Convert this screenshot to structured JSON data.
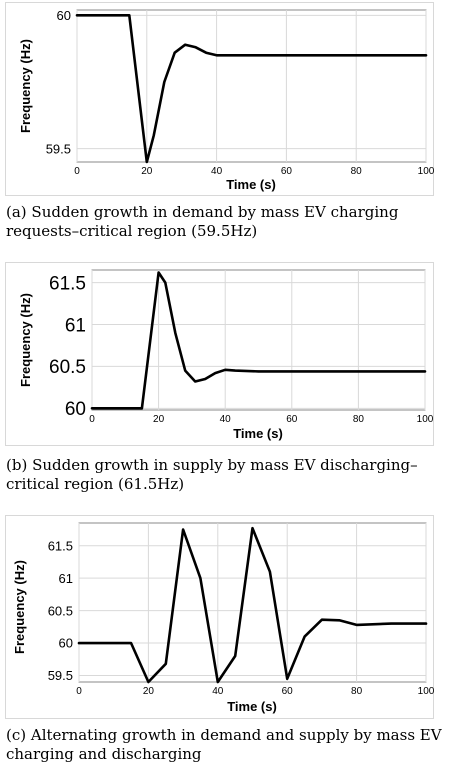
{
  "figures": [
    {
      "caption": "(a) Sudden growth in demand by mass EV charging requests–critical region (59.5Hz)",
      "chart_data": {
        "type": "line",
        "xlabel": "Time (s)",
        "ylabel": "Frequency (Hz)",
        "xlim": [
          0,
          100
        ],
        "ylim": [
          59.45,
          60.02
        ],
        "xticks": [
          0,
          20,
          40,
          60,
          80,
          100
        ],
        "yticks": [
          59.5,
          60
        ],
        "grid": true,
        "series": [
          {
            "x": [
              0,
              15,
              20,
              22,
              25,
              28,
              31,
              34,
              37,
              40,
              43,
              50,
              100
            ],
            "y": [
              60,
              60,
              59.45,
              59.55,
              59.75,
              59.86,
              59.89,
              59.88,
              59.86,
              59.85,
              59.85,
              59.85,
              59.85
            ]
          }
        ]
      }
    },
    {
      "caption": "(b) Sudden growth in supply by mass EV discharging–critical region (61.5Hz)",
      "chart_data": {
        "type": "line",
        "xlabel": "Time (s)",
        "ylabel": "Frequency (Hz)",
        "xlim": [
          0,
          100
        ],
        "ylim": [
          59.98,
          61.65
        ],
        "xticks": [
          0,
          20,
          40,
          60,
          80,
          100
        ],
        "yticks": [
          60,
          60.5,
          61,
          61.5
        ],
        "grid": true,
        "series": [
          {
            "x": [
              0,
              15,
              20,
              22,
              25,
              28,
              31,
              34,
              37,
              40,
              43,
              50,
              100
            ],
            "y": [
              60,
              60,
              61.62,
              61.5,
              60.9,
              60.45,
              60.32,
              60.35,
              60.42,
              60.46,
              60.45,
              60.44,
              60.44
            ]
          }
        ]
      }
    },
    {
      "caption": "(c) Alternating growth in demand and supply by mass EV charging and discharging",
      "chart_data": {
        "type": "line",
        "xlabel": "Time (s)",
        "ylabel": "Frequency (Hz)",
        "xlim": [
          0,
          100
        ],
        "ylim": [
          59.4,
          61.85
        ],
        "xticks": [
          0,
          20,
          40,
          60,
          80,
          100
        ],
        "yticks": [
          59.5,
          60,
          60.5,
          61,
          61.5
        ],
        "grid": true,
        "series": [
          {
            "x": [
              0,
              15,
              20,
              25,
              30,
              35,
              40,
              45,
              50,
              55,
              60,
              65,
              70,
              75,
              80,
              90,
              100
            ],
            "y": [
              60,
              60,
              59.4,
              59.68,
              61.75,
              61.0,
              59.4,
              59.8,
              61.77,
              61.1,
              59.45,
              60.1,
              60.36,
              60.35,
              60.28,
              60.3,
              60.3
            ]
          }
        ]
      }
    }
  ]
}
